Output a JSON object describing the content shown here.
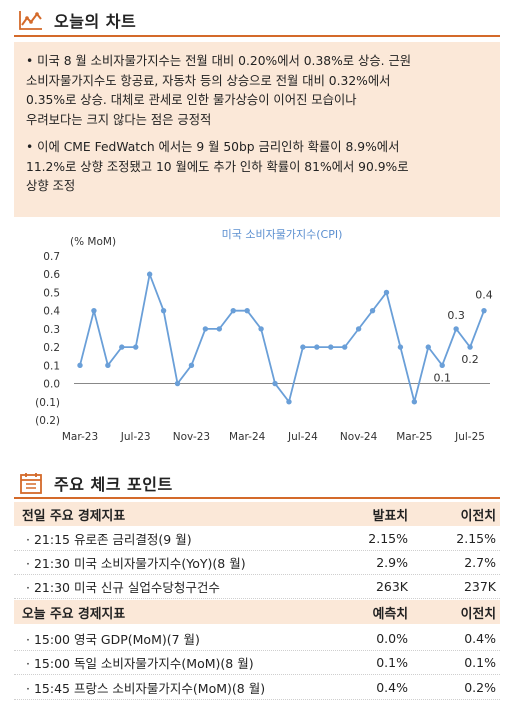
{
  "section1": {
    "title": "오늘의 차트",
    "bullets": [
      {
        "lines": [
          "• 미국 8 월 소비자물가지수는 전월 대비 0.20%에서 0.38%로 상승. 근원",
          "소비자물가지수도 항공료, 자동차 등의 상승으로 전월 대비 0.32%에서",
          "0.35%로 상승. 대체로 관세로 인한 물가상승이 이어진 모습이나",
          "우려보다는 크지 않다는 점은 긍정적"
        ]
      },
      {
        "lines": [
          "• 이에 CME FedWatch 에서는 9 월 50bp 금리인하 확률이 8.9%에서",
          "11.2%로 상향 조정됐고 10 월에도 추가 인하 확률이 81%에서 90.9%로",
          "상향 조정"
        ]
      }
    ]
  },
  "chart_data": {
    "type": "line",
    "title": "미국 소비자물가지수(CPI)",
    "ylabel": "(% MoM)",
    "ylim": [
      -0.2,
      0.7
    ],
    "y_ticks": [
      "0.7",
      "0.6",
      "0.5",
      "0.4",
      "0.3",
      "0.2",
      "0.1",
      "0.0",
      "(0.1)",
      "(0.2)"
    ],
    "x_tick_labels": [
      "Mar-23",
      "Jul-23",
      "Nov-23",
      "Mar-24",
      "Jul-24",
      "Nov-24",
      "Mar-25",
      "Jul-25"
    ],
    "x": [
      "Mar-23",
      "Apr-23",
      "May-23",
      "Jun-23",
      "Jul-23",
      "Aug-23",
      "Sep-23",
      "Oct-23",
      "Nov-23",
      "Dec-23",
      "Jan-24",
      "Feb-24",
      "Mar-24",
      "Apr-24",
      "May-24",
      "Jun-24",
      "Jul-24",
      "Aug-24",
      "Sep-24",
      "Oct-24",
      "Nov-24",
      "Dec-24",
      "Jan-25",
      "Feb-25",
      "Mar-25",
      "Apr-25",
      "May-25",
      "Jun-25",
      "Jul-25",
      "Aug-25"
    ],
    "series": [
      {
        "values": [
          0.1,
          0.4,
          0.1,
          0.2,
          0.2,
          0.6,
          0.4,
          0.0,
          0.1,
          0.3,
          0.3,
          0.4,
          0.4,
          0.3,
          0.0,
          -0.1,
          0.2,
          0.2,
          0.2,
          0.2,
          0.3,
          0.4,
          0.5,
          0.2,
          -0.1,
          0.2,
          0.1,
          0.3,
          0.2,
          0.4
        ],
        "color": "#6a9fd8"
      }
    ],
    "annotations": [
      {
        "x": "May-25",
        "text": "0.1"
      },
      {
        "x": "Jun-25",
        "text": "0.3"
      },
      {
        "x": "Jul-25",
        "text": "0.2"
      },
      {
        "x": "Aug-25",
        "text": "0.4"
      }
    ],
    "grid": false
  },
  "section2": {
    "title": "주요 체크 포인트",
    "table1": {
      "headers": [
        "전일 주요 경제지표",
        "발표치",
        "이전치"
      ],
      "rows": [
        [
          "· 21:15 유로존 금리결정(9 월)",
          "2.15%",
          "2.15%"
        ],
        [
          "· 21:30 미국 소비자물가지수(YoY)(8 월)",
          "2.9%",
          "2.7%"
        ],
        [
          "· 21:30 미국 신규 실업수당청구건수",
          "263K",
          "237K"
        ]
      ]
    },
    "table2": {
      "headers": [
        "오늘 주요 경제지표",
        "예측치",
        "이전치"
      ],
      "rows": [
        [
          "· 15:00 영국 GDP(MoM)(7 월)",
          "0.0%",
          "0.4%"
        ],
        [
          "· 15:00 독일 소비자물가지수(MoM)(8 월)",
          "0.1%",
          "0.1%"
        ],
        [
          "· 15:45 프랑스 소비자물가지수(MoM)(8 월)",
          "0.4%",
          "0.2%"
        ]
      ]
    }
  },
  "colors": {
    "accent": "#d46a2a",
    "panel": "#fbe8d8",
    "line": "#6a9fd8"
  },
  "icons": {
    "section1": "line-chart-icon",
    "section2": "calendar-checklist-icon"
  }
}
